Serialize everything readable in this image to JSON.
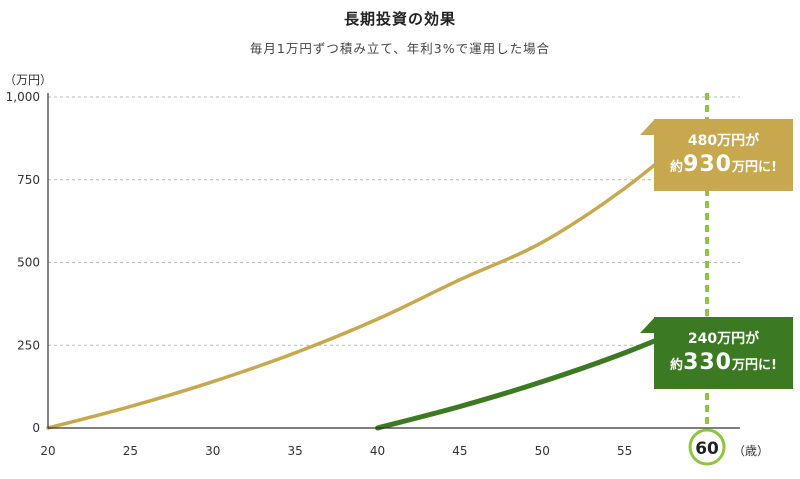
{
  "title": "長期投資の効果",
  "subtitle": "毎月1万円ずつ積み立て、年利3%で運用した場合",
  "colors": {
    "gold": "#c7a84f",
    "green": "#3b7a22",
    "highlight": "#8cc63f",
    "grid": "#bbbbbb"
  },
  "chart_data": {
    "type": "line",
    "y_unit": "（万円）",
    "x_unit": "（歳）",
    "xlim": [
      20,
      62
    ],
    "ylim": [
      0,
      1000
    ],
    "x_ticks": [
      "20",
      "25",
      "30",
      "35",
      "40",
      "45",
      "50",
      "55",
      "60"
    ],
    "y_ticks": [
      "0",
      "250",
      "500",
      "750",
      "1,000"
    ],
    "y_tick_values": [
      0,
      250,
      500,
      750,
      1000
    ],
    "highlight_x": 60,
    "highlight_label": "60",
    "grid": true,
    "series": [
      {
        "x": [
          20,
          25,
          30,
          35,
          40,
          45,
          50,
          55,
          60
        ],
        "y": [
          0,
          65,
          140,
          227,
          329,
          448,
          561,
          724,
          926
        ]
      },
      {
        "x": [
          40,
          45,
          50,
          55,
          60
        ],
        "y": [
          0,
          65,
          140,
          227,
          329
        ]
      }
    ]
  },
  "callouts": {
    "gold": {
      "line1": "480万円が",
      "prefix": "約",
      "amount": "930",
      "suffix": "万円に!"
    },
    "green": {
      "line1": "240万円が",
      "prefix": "約",
      "amount": "330",
      "suffix": "万円に!"
    }
  }
}
